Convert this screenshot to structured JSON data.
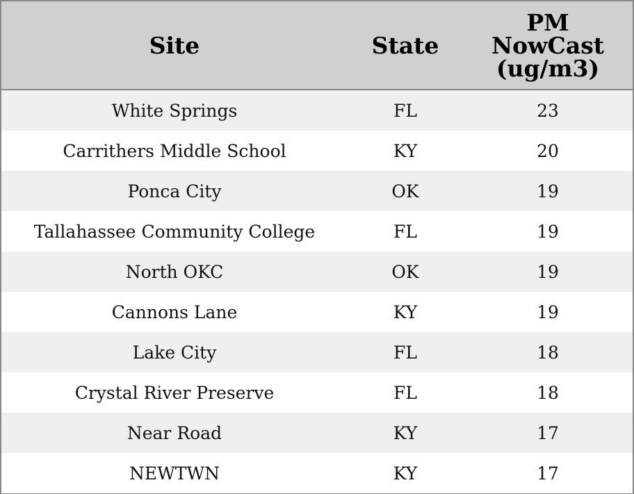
{
  "table": {
    "header": [
      "Site",
      "State",
      "PM NowCast (ug/m3)"
    ],
    "rows": [
      [
        "White Springs",
        "FL",
        23
      ],
      [
        "Carrithers Middle School",
        "KY",
        20
      ],
      [
        "Ponca City",
        "OK",
        19
      ],
      [
        "Tallahassee Community College",
        "FL",
        19
      ],
      [
        "North OKC",
        "OK",
        19
      ],
      [
        "Cannons Lane",
        "KY",
        19
      ],
      [
        "Lake City",
        "FL",
        18
      ],
      [
        "Crystal River Preserve",
        "FL",
        18
      ],
      [
        "Near Road",
        "KY",
        17
      ],
      [
        "NEWTWN",
        "KY",
        17
      ]
    ]
  }
}
